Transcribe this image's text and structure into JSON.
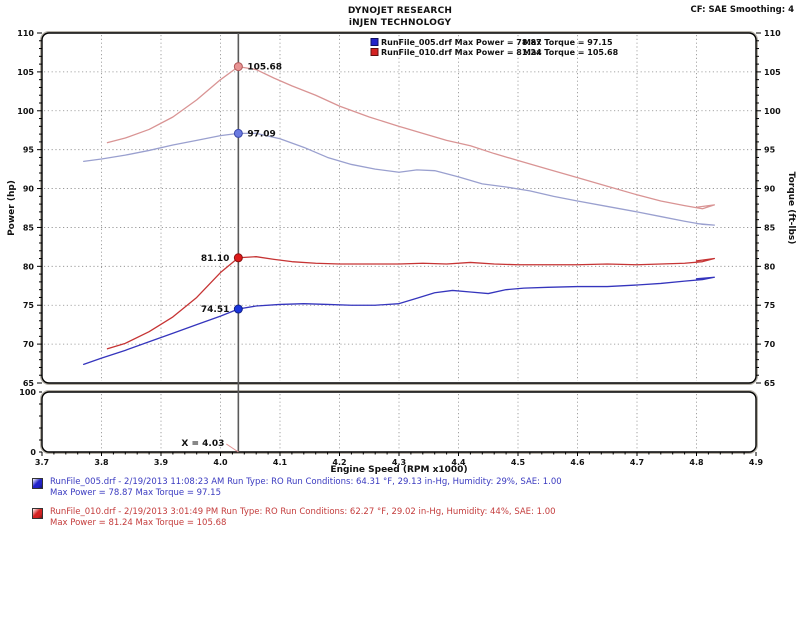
{
  "header": {
    "title_line1": "DYNOJET RESEARCH",
    "title_line2": "iNJEN TECHNOLOGY",
    "correction_label": "CF: SAE  Smoothing: 4"
  },
  "legend": {
    "entries": [
      {
        "left": "RunFile_005.drf Max Power = 78.87",
        "right": "Max Torque = 97.15",
        "swatch_color": "#2222c8",
        "swatch_border": "#101060"
      },
      {
        "left": "RunFile_010.drf Max Power = 81.24",
        "right": "Max Torque = 105.68",
        "swatch_color": "#d42222",
        "swatch_border": "#601010"
      }
    ]
  },
  "cursor": {
    "x": 4.03,
    "label": "X = 4.03",
    "line_color": "#5a5a5a",
    "connector_color": "#e09090"
  },
  "chart_data": {
    "type": "line",
    "title": "",
    "xlabel": "Engine Speed (RPM x1000)",
    "ylabel_left": "Power (hp)",
    "ylabel_right": "Torque (ft-lbs)",
    "xlim": [
      3.7,
      4.9
    ],
    "ylim": [
      65,
      110
    ],
    "x_major_step": 0.1,
    "x_minor_step": 0.02,
    "y_major_step": 5,
    "y_minor_step": 1,
    "grid": "dotted",
    "grid_color": "#8a8a8a",
    "frame_color": "#000000",
    "shadow_color": "#b6b2a9",
    "lower_panel": {
      "ylim": [
        0,
        100
      ],
      "yticks": [
        0,
        100
      ],
      "y_minor_step": 20
    },
    "series": [
      {
        "name": "RunFile_005 Power (hp)",
        "color": "#3535bd",
        "width": 1.3,
        "points": [
          [
            3.77,
            67.4
          ],
          [
            3.8,
            68.2
          ],
          [
            3.84,
            69.2
          ],
          [
            3.88,
            70.3
          ],
          [
            3.92,
            71.4
          ],
          [
            3.96,
            72.5
          ],
          [
            4.0,
            73.6
          ],
          [
            4.03,
            74.51
          ],
          [
            4.06,
            74.9
          ],
          [
            4.1,
            75.1
          ],
          [
            4.14,
            75.2
          ],
          [
            4.18,
            75.1
          ],
          [
            4.22,
            75.0
          ],
          [
            4.26,
            75.0
          ],
          [
            4.3,
            75.2
          ],
          [
            4.33,
            75.9
          ],
          [
            4.36,
            76.6
          ],
          [
            4.39,
            76.9
          ],
          [
            4.42,
            76.7
          ],
          [
            4.45,
            76.5
          ],
          [
            4.48,
            77.0
          ],
          [
            4.51,
            77.2
          ],
          [
            4.55,
            77.3
          ],
          [
            4.6,
            77.4
          ],
          [
            4.65,
            77.4
          ],
          [
            4.7,
            77.6
          ],
          [
            4.74,
            77.8
          ],
          [
            4.78,
            78.1
          ],
          [
            4.81,
            78.3
          ],
          [
            4.83,
            78.6
          ],
          [
            4.8,
            78.4
          ]
        ]
      },
      {
        "name": "RunFile_005 Torque (ft-lbs)",
        "color": "#9aa0cf",
        "width": 1.3,
        "points": [
          [
            3.77,
            93.5
          ],
          [
            3.8,
            93.8
          ],
          [
            3.84,
            94.3
          ],
          [
            3.88,
            94.9
          ],
          [
            3.92,
            95.6
          ],
          [
            3.96,
            96.2
          ],
          [
            4.0,
            96.8
          ],
          [
            4.03,
            97.09
          ],
          [
            4.06,
            97.1
          ],
          [
            4.1,
            96.4
          ],
          [
            4.14,
            95.3
          ],
          [
            4.18,
            94.0
          ],
          [
            4.22,
            93.1
          ],
          [
            4.26,
            92.5
          ],
          [
            4.3,
            92.1
          ],
          [
            4.33,
            92.4
          ],
          [
            4.36,
            92.3
          ],
          [
            4.4,
            91.5
          ],
          [
            4.44,
            90.6
          ],
          [
            4.48,
            90.2
          ],
          [
            4.52,
            89.7
          ],
          [
            4.56,
            89.0
          ],
          [
            4.6,
            88.4
          ],
          [
            4.65,
            87.7
          ],
          [
            4.7,
            87.0
          ],
          [
            4.74,
            86.4
          ],
          [
            4.78,
            85.8
          ],
          [
            4.81,
            85.4
          ],
          [
            4.83,
            85.3
          ],
          [
            4.8,
            85.5
          ]
        ]
      },
      {
        "name": "RunFile_010 Power (hp)",
        "color": "#c63434",
        "width": 1.3,
        "points": [
          [
            3.81,
            69.4
          ],
          [
            3.84,
            70.1
          ],
          [
            3.88,
            71.6
          ],
          [
            3.92,
            73.5
          ],
          [
            3.96,
            76.0
          ],
          [
            4.0,
            79.2
          ],
          [
            4.03,
            81.1
          ],
          [
            4.06,
            81.24
          ],
          [
            4.09,
            80.9
          ],
          [
            4.12,
            80.6
          ],
          [
            4.16,
            80.4
          ],
          [
            4.2,
            80.3
          ],
          [
            4.25,
            80.3
          ],
          [
            4.3,
            80.3
          ],
          [
            4.34,
            80.4
          ],
          [
            4.38,
            80.3
          ],
          [
            4.42,
            80.5
          ],
          [
            4.46,
            80.3
          ],
          [
            4.5,
            80.2
          ],
          [
            4.55,
            80.2
          ],
          [
            4.6,
            80.2
          ],
          [
            4.65,
            80.3
          ],
          [
            4.7,
            80.2
          ],
          [
            4.74,
            80.3
          ],
          [
            4.78,
            80.4
          ],
          [
            4.81,
            80.6
          ],
          [
            4.83,
            81.0
          ],
          [
            4.8,
            80.7
          ]
        ]
      },
      {
        "name": "RunFile_010 Torque (ft-lbs)",
        "color": "#d99494",
        "width": 1.3,
        "points": [
          [
            3.81,
            95.9
          ],
          [
            3.84,
            96.5
          ],
          [
            3.88,
            97.6
          ],
          [
            3.92,
            99.2
          ],
          [
            3.96,
            101.4
          ],
          [
            4.0,
            104.0
          ],
          [
            4.03,
            105.68
          ],
          [
            4.06,
            105.3
          ],
          [
            4.09,
            104.2
          ],
          [
            4.12,
            103.2
          ],
          [
            4.16,
            102.0
          ],
          [
            4.2,
            100.6
          ],
          [
            4.25,
            99.2
          ],
          [
            4.3,
            98.0
          ],
          [
            4.34,
            97.1
          ],
          [
            4.38,
            96.2
          ],
          [
            4.42,
            95.5
          ],
          [
            4.46,
            94.5
          ],
          [
            4.5,
            93.6
          ],
          [
            4.55,
            92.5
          ],
          [
            4.6,
            91.4
          ],
          [
            4.65,
            90.3
          ],
          [
            4.7,
            89.2
          ],
          [
            4.74,
            88.4
          ],
          [
            4.78,
            87.8
          ],
          [
            4.81,
            87.4
          ],
          [
            4.83,
            87.9
          ],
          [
            4.8,
            87.6
          ]
        ]
      }
    ],
    "markers": [
      {
        "x": 4.03,
        "y": 105.68,
        "label": "105.68",
        "side": "right",
        "fill": "#e89494",
        "stroke": "#b05858"
      },
      {
        "x": 4.03,
        "y": 97.09,
        "label": "97.09",
        "side": "right",
        "fill": "#6a7ae0",
        "stroke": "#3947a8"
      },
      {
        "x": 4.03,
        "y": 81.1,
        "label": "81.10",
        "side": "left",
        "fill": "#dd1a1a",
        "stroke": "#8a0f0f"
      },
      {
        "x": 4.03,
        "y": 74.51,
        "label": "74.51",
        "side": "left",
        "fill": "#1a35dd",
        "stroke": "#10208a"
      }
    ]
  },
  "footer": {
    "runs": [
      {
        "color": "#3a3ac0",
        "swatch": "#2222c8",
        "line1": "RunFile_005.drf - 2/19/2013 11:08:23 AM  Run Type: RO  Run Conditions: 64.31 °F, 29.13 in-Hg,  Humidity:  29%, SAE: 1.00",
        "line2": "Max Power = 78.87   Max Torque = 97.15"
      },
      {
        "color": "#c43c3c",
        "swatch": "#d42222",
        "line1": "RunFile_010.drf - 2/19/2013 3:01:49 PM  Run Type: RO  Run Conditions: 62.27 °F, 29.02 in-Hg,  Humidity:  44%, SAE: 1.00",
        "line2": "Max Power = 81.24   Max Torque = 105.68"
      }
    ]
  }
}
